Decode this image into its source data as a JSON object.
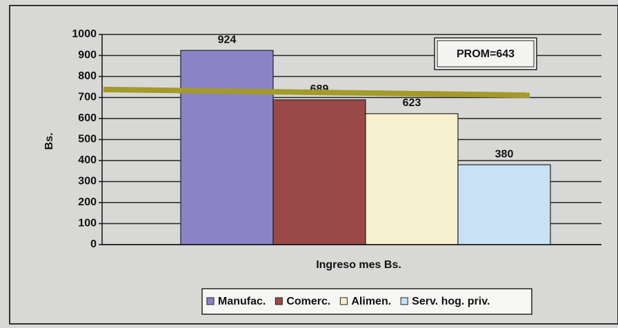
{
  "chart_data": {
    "type": "bar",
    "y_label": "Bs.",
    "x_label": "Ingreso mes Bs.",
    "series": [
      {
        "name": "Manufac.",
        "color": "#8a84c6",
        "values": [
          924
        ]
      },
      {
        "name": "Comerc.",
        "color": "#9a4848",
        "values": [
          689
        ]
      },
      {
        "name": "Alimen.",
        "color": "#f6f0cf",
        "values": [
          623
        ]
      },
      {
        "name": "Serv. hog. priv.",
        "color": "#c9e1f5",
        "values": [
          380
        ]
      }
    ],
    "ylim": [
      0,
      1000
    ],
    "yticks": [
      0,
      100,
      200,
      300,
      400,
      500,
      600,
      700,
      800,
      900,
      1000
    ],
    "grid": true,
    "legend": "bottom",
    "annotation": "PROM=643",
    "reference_line": {
      "values": [
        738,
        711
      ],
      "color": "#a39a2a"
    }
  }
}
